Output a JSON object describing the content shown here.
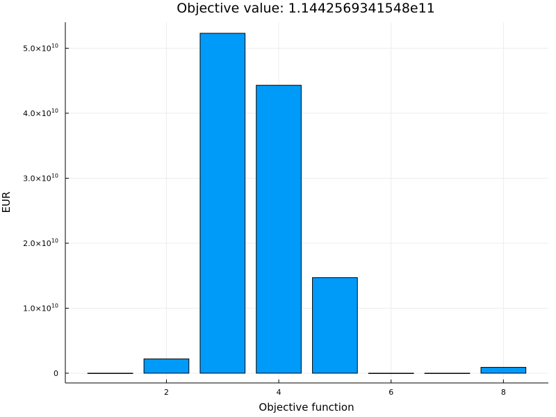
{
  "chart_data": {
    "type": "bar",
    "title": "Objective value: 1.1442569341548e11",
    "xlabel": "Objective function",
    "ylabel": "EUR",
    "categories": [
      1,
      2,
      3,
      4,
      5,
      6,
      7,
      8
    ],
    "values": [
      0,
      2200000000,
      52300000000,
      44300000000,
      14700000000,
      0,
      0,
      900000000
    ],
    "xlim": [
      0.2,
      8.8
    ],
    "ylim": [
      -1500000000,
      54000000000
    ],
    "xticks": [
      {
        "value": 2,
        "label": "2"
      },
      {
        "value": 4,
        "label": "4"
      },
      {
        "value": 6,
        "label": "6"
      },
      {
        "value": 8,
        "label": "8"
      }
    ],
    "yticks": [
      {
        "value": 0,
        "mantissa": "0",
        "exponent": ""
      },
      {
        "value": 10000000000,
        "mantissa": "1.0×10",
        "exponent": "10"
      },
      {
        "value": 20000000000,
        "mantissa": "2.0×10",
        "exponent": "10"
      },
      {
        "value": 30000000000,
        "mantissa": "3.0×10",
        "exponent": "10"
      },
      {
        "value": 40000000000,
        "mantissa": "4.0×10",
        "exponent": "10"
      },
      {
        "value": 50000000000,
        "mantissa": "5.0×10",
        "exponent": "10"
      }
    ],
    "bar_color": "#009af9",
    "grid": true,
    "legend": false
  }
}
